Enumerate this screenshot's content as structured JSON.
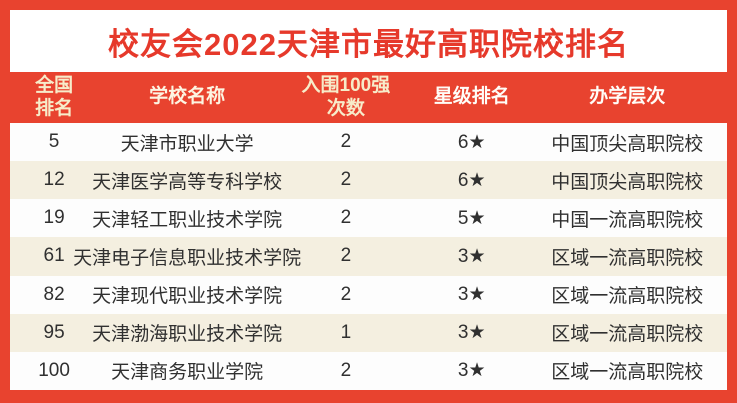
{
  "chart_data": {
    "type": "table",
    "title": "校友会2022天津市最好高职院校排名",
    "columns": [
      "全国排名",
      "学校名称",
      "入围100强次数",
      "星级排名",
      "办学层次"
    ],
    "rows": [
      [
        "5",
        "天津市职业大学",
        "2",
        "6★",
        "中国顶尖高职院校"
      ],
      [
        "12",
        "天津医学高等专科学校",
        "2",
        "6★",
        "中国顶尖高职院校"
      ],
      [
        "19",
        "天津轻工职业技术学院",
        "2",
        "5★",
        "中国一流高职院校"
      ],
      [
        "61",
        "天津电子信息职业技术学院",
        "2",
        "3★",
        "区域一流高职院校"
      ],
      [
        "82",
        "天津现代职业技术学院",
        "2",
        "3★",
        "区域一流高职院校"
      ],
      [
        "95",
        "天津渤海职业技术学院",
        "1",
        "3★",
        "区域一流高职院校"
      ],
      [
        "100",
        "天津商务职业学院",
        "2",
        "3★",
        "区域一流高职院校"
      ]
    ]
  },
  "header_display": [
    "全国\n排名",
    "学校名称",
    "入围100强\n次数",
    "星级排名",
    "办学层次"
  ],
  "colors": {
    "frame_red": "#e8432f",
    "header_bar_red": "#e8432f",
    "title_text_red": "#e6392b",
    "header_text_cream": "#f7ecca",
    "header_text_white": "#fffdf8",
    "row_stripe_cream": "#f4efe0",
    "row_white": "#fdfdfd",
    "body_text": "#303030"
  }
}
